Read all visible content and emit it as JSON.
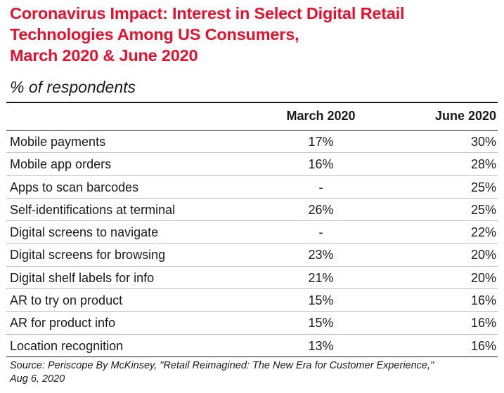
{
  "chart_data": {
    "type": "table",
    "title_lines": [
      "Coronavirus Impact: Interest in Select Digital Retail",
      "Technologies Among US Consumers,",
      "March 2020 & June 2020"
    ],
    "subtitle": "% of respondents",
    "columns": [
      "March 2020",
      "June 2020"
    ],
    "rows": [
      {
        "label": "Mobile payments",
        "march": "17%",
        "june": "30%"
      },
      {
        "label": "Mobile app orders",
        "march": "16%",
        "june": "28%"
      },
      {
        "label": "Apps to scan barcodes",
        "march": "-",
        "june": "25%"
      },
      {
        "label": "Self-identifications at terminal",
        "march": "26%",
        "june": "25%"
      },
      {
        "label": "Digital screens to navigate",
        "march": "-",
        "june": "22%"
      },
      {
        "label": "Digital screens for browsing",
        "march": "23%",
        "june": "20%"
      },
      {
        "label": "Digital shelf labels for info",
        "march": "21%",
        "june": "20%"
      },
      {
        "label": "AR to try on product",
        "march": "15%",
        "june": "16%"
      },
      {
        "label": "AR for product info",
        "march": "15%",
        "june": "16%"
      },
      {
        "label": "Location recognition",
        "march": "13%",
        "june": "16%"
      }
    ],
    "source_lines": [
      "Source: Periscope By McKinsey, \"Retail Reimagined: The New Era for Customer Experience,\"",
      "Aug 6, 2020"
    ]
  },
  "colors": {
    "title": "#e8112d",
    "text": "#1a1a1a",
    "row_divider": "#bdbdbd"
  }
}
